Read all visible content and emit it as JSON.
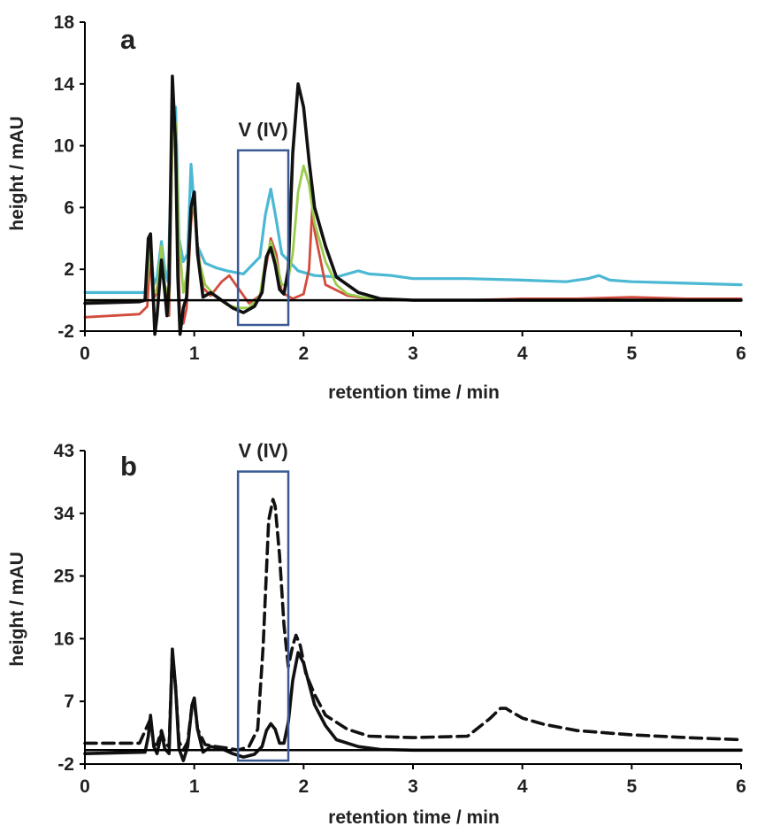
{
  "chart_data": [
    {
      "panel": "a",
      "type": "line",
      "xlabel": "retention time / min",
      "ylabel": "height / mAU",
      "xlim": [
        0,
        6
      ],
      "ylim": [
        -2,
        18
      ],
      "xticks": [
        0,
        1,
        2,
        3,
        4,
        5,
        6
      ],
      "yticks": [
        -2,
        2,
        6,
        10,
        14,
        18
      ],
      "baseline": 0,
      "grid": false,
      "legend": "none",
      "annotation": {
        "label": "V (IV)",
        "x_range": [
          1.4,
          1.86
        ],
        "y_range": [
          -1.6,
          9.7
        ]
      },
      "series": [
        {
          "color": "#4bb8d4",
          "stroke_width": 3.2,
          "dashed": false,
          "x": [
            0,
            0.55,
            0.58,
            0.6,
            0.63,
            0.66,
            0.7,
            0.73,
            0.76,
            0.8,
            0.83,
            0.86,
            0.9,
            0.94,
            0.97,
            1.0,
            1.03,
            1.1,
            1.2,
            1.3,
            1.45,
            1.6,
            1.65,
            1.7,
            1.75,
            1.8,
            1.95,
            2.1,
            2.3,
            2.45,
            2.5,
            2.6,
            2.8,
            3.0,
            3.5,
            4.0,
            4.4,
            4.6,
            4.7,
            4.8,
            5.0,
            5.5,
            6.0
          ],
          "y": [
            0.5,
            0.5,
            2.5,
            3.5,
            1,
            1.5,
            3.8,
            2,
            1.2,
            11,
            12.5,
            4,
            2.5,
            3,
            8.8,
            6,
            3.5,
            2.4,
            2.1,
            1.9,
            1.7,
            2.8,
            5.5,
            7.2,
            5.2,
            3,
            1.9,
            1.6,
            1.5,
            1.8,
            1.9,
            1.7,
            1.6,
            1.4,
            1.4,
            1.3,
            1.2,
            1.4,
            1.6,
            1.3,
            1.2,
            1.1,
            1.0
          ]
        },
        {
          "color": "#d24b3c",
          "stroke_width": 2.8,
          "dashed": false,
          "x": [
            0,
            0.5,
            0.57,
            0.6,
            0.62,
            0.65,
            0.7,
            0.73,
            0.77,
            0.8,
            0.82,
            0.85,
            0.87,
            0.9,
            0.93,
            0.97,
            1.0,
            1.03,
            1.08,
            1.15,
            1.25,
            1.32,
            1.4,
            1.5,
            1.6,
            1.66,
            1.7,
            1.75,
            1.8,
            1.9,
            2.0,
            2.05,
            2.08,
            2.1,
            2.2,
            2.4,
            2.6,
            2.8,
            3.0,
            3.5,
            4.0,
            4.5,
            5.0,
            5.5,
            6.0
          ],
          "y": [
            -1.1,
            -0.9,
            -0.4,
            3.2,
            0,
            0.4,
            2.5,
            0.8,
            -1,
            10.5,
            11,
            4,
            -1.5,
            -1.5,
            -0.5,
            5,
            7,
            3.5,
            0.8,
            0.3,
            1.2,
            1.6,
            0.8,
            -0.2,
            0.3,
            2.3,
            4,
            3,
            0.5,
            0.1,
            0.4,
            2,
            6,
            4.5,
            1,
            0.3,
            0.1,
            0,
            0,
            0,
            0.1,
            0.1,
            0.2,
            0.1,
            0.1
          ]
        },
        {
          "color": "#9bcb4e",
          "stroke_width": 2.8,
          "dashed": false,
          "x": [
            0,
            0.55,
            0.6,
            0.63,
            0.66,
            0.7,
            0.73,
            0.77,
            0.8,
            0.83,
            0.86,
            0.9,
            0.94,
            0.98,
            1.0,
            1.03,
            1.1,
            1.2,
            1.3,
            1.4,
            1.5,
            1.6,
            1.65,
            1.7,
            1.75,
            1.8,
            1.85,
            1.9,
            1.95,
            2.0,
            2.05,
            2.1,
            2.2,
            2.3,
            2.4,
            2.6,
            2.8,
            3.0,
            4.0,
            5.0,
            6.0
          ],
          "y": [
            0,
            0,
            3.5,
            0.5,
            0.5,
            3.5,
            1,
            0.2,
            10,
            11.5,
            4,
            0.5,
            2,
            6.5,
            6,
            3,
            1,
            0.2,
            -0.3,
            -0.5,
            -0.5,
            0.3,
            2.5,
            3.8,
            2.5,
            1,
            1,
            3,
            7,
            8.7,
            7.5,
            5,
            2.5,
            1,
            0.4,
            0.1,
            0,
            0,
            0,
            0,
            0
          ]
        },
        {
          "color": "#111111",
          "stroke_width": 3.6,
          "dashed": false,
          "x": [
            0,
            0.5,
            0.55,
            0.58,
            0.6,
            0.62,
            0.64,
            0.66,
            0.7,
            0.73,
            0.75,
            0.77,
            0.8,
            0.83,
            0.85,
            0.87,
            0.9,
            0.93,
            0.97,
            1.0,
            1.03,
            1.08,
            1.15,
            1.25,
            1.35,
            1.45,
            1.55,
            1.62,
            1.66,
            1.7,
            1.74,
            1.78,
            1.82,
            1.86,
            1.9,
            1.95,
            2.0,
            2.05,
            2.1,
            2.2,
            2.3,
            2.5,
            2.7,
            3.0,
            4.0,
            5.0,
            6.0
          ],
          "y": [
            -0.2,
            -0.1,
            0,
            4,
            4.3,
            1,
            -2.2,
            -1,
            2.6,
            0.6,
            -1,
            1,
            14.5,
            10,
            1.5,
            -2.2,
            -0.5,
            0.2,
            6,
            7,
            3,
            0.2,
            0.5,
            0,
            -0.5,
            -0.8,
            -0.4,
            0.5,
            2.8,
            3.4,
            2.3,
            0.7,
            0.4,
            2,
            9.5,
            14,
            12.5,
            9,
            6,
            3.5,
            1.5,
            0.5,
            0.1,
            0,
            0,
            0,
            0
          ]
        }
      ]
    },
    {
      "panel": "b",
      "type": "line",
      "xlabel": "retention time / min",
      "ylabel": "height / mAU",
      "xlim": [
        0,
        6
      ],
      "ylim": [
        -2,
        43
      ],
      "xticks": [
        0,
        1,
        2,
        3,
        4,
        5,
        6
      ],
      "yticks": [
        -2,
        7,
        16,
        25,
        34,
        43
      ],
      "baseline": 0,
      "grid": false,
      "legend": "none",
      "annotation": {
        "label": "V (IV)",
        "x_range": [
          1.4,
          1.86
        ],
        "y_range": [
          -1.5,
          40
        ]
      },
      "series": [
        {
          "color": "#111111",
          "stroke_width": 3.6,
          "dashed": false,
          "x": [
            0,
            0.55,
            0.58,
            0.6,
            0.63,
            0.66,
            0.7,
            0.73,
            0.77,
            0.8,
            0.83,
            0.86,
            0.9,
            0.94,
            0.98,
            1.0,
            1.03,
            1.08,
            1.15,
            1.25,
            1.35,
            1.45,
            1.55,
            1.62,
            1.66,
            1.7,
            1.74,
            1.78,
            1.82,
            1.86,
            1.9,
            1.95,
            2.0,
            2.05,
            2.1,
            2.2,
            2.3,
            2.5,
            2.7,
            3.0,
            4.0,
            5.0,
            6.0
          ],
          "y": [
            -0.5,
            -0.3,
            2,
            5,
            0.5,
            -0.5,
            2.5,
            0.2,
            -0.5,
            14.5,
            9,
            0.2,
            -1.5,
            0.5,
            6.5,
            7.5,
            3,
            -0.3,
            0.5,
            0.2,
            -0.5,
            -1,
            -0.6,
            0.5,
            2.8,
            3.8,
            3,
            1,
            1,
            4,
            10,
            14,
            12.5,
            9.5,
            6.5,
            3.5,
            1.5,
            0.5,
            0.1,
            0,
            0,
            0,
            0
          ]
        },
        {
          "color": "#111111",
          "stroke_width": 3.6,
          "dashed": true,
          "x": [
            0,
            0.5,
            0.6,
            0.63,
            0.66,
            0.7,
            0.73,
            0.77,
            0.8,
            0.83,
            0.86,
            0.9,
            0.94,
            0.98,
            1.0,
            1.03,
            1.1,
            1.2,
            1.3,
            1.4,
            1.5,
            1.58,
            1.63,
            1.68,
            1.72,
            1.74,
            1.78,
            1.82,
            1.86,
            1.9,
            1.93,
            1.97,
            2.02,
            2.1,
            2.2,
            2.4,
            2.6,
            3.0,
            3.5,
            3.7,
            3.8,
            3.85,
            3.9,
            4.0,
            4.2,
            4.5,
            5.0,
            5.5,
            6.0
          ],
          "y": [
            1,
            1,
            4.5,
            0.8,
            0.8,
            2.8,
            1,
            0.5,
            14,
            9,
            1.2,
            0,
            1.2,
            6.5,
            7,
            3,
            0.8,
            0.5,
            0.3,
            0,
            0.5,
            3,
            15,
            33,
            36,
            35,
            28,
            18,
            12,
            15,
            16.5,
            15,
            11,
            8,
            5,
            3,
            2,
            1.8,
            2,
            4.5,
            6,
            6,
            5.5,
            4.6,
            3.7,
            2.8,
            2.2,
            1.8,
            1.5
          ]
        }
      ]
    }
  ]
}
